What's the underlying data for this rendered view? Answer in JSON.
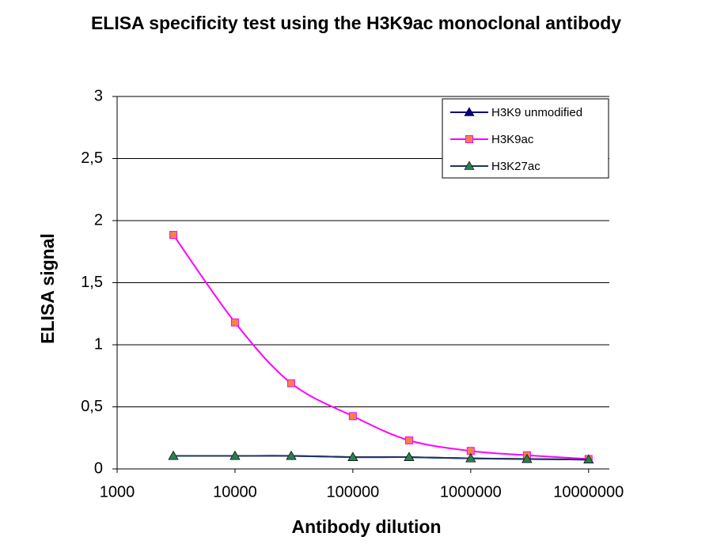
{
  "chart_data": {
    "type": "line",
    "title": "ELISA specificity test using the H3K9ac monoclonal antibody",
    "x_label": "Antibody dilution",
    "y_label": "ELISA signal",
    "x": [
      3000,
      10000,
      30000,
      100000,
      300000,
      1000000,
      3000000,
      10000000
    ],
    "xscale": "log",
    "xlim": [
      1000,
      15000000
    ],
    "xticks": [
      1000,
      10000,
      100000,
      1000000,
      10000000
    ],
    "ylim": [
      0,
      3
    ],
    "yticks": [
      0,
      {
        "value": 0.5,
        "label": "0,5"
      },
      1,
      {
        "value": 1.5,
        "label": "1,5"
      },
      2,
      {
        "value": 2.5,
        "label": "2,5"
      },
      3
    ],
    "grid": true,
    "legend": "upper right",
    "series": [
      {
        "name": "H3K9 unmodified",
        "color": "#000080",
        "marker": "triangle",
        "marker_color": "#000080",
        "values": [
          0.105,
          0.105,
          0.105,
          0.095,
          0.095,
          0.085,
          0.08,
          0.075
        ]
      },
      {
        "name": "H3K9ac",
        "color": "#ff00ff",
        "marker": "square",
        "marker_color": "#f4824a",
        "values": [
          1.885,
          1.18,
          0.69,
          0.425,
          0.23,
          0.145,
          0.11,
          0.08
        ]
      },
      {
        "name": "H3K27ac",
        "color": "#1f3560",
        "marker": "triangle",
        "marker_color": "#2e7d4f",
        "values": [
          0.105,
          0.105,
          0.105,
          0.095,
          0.095,
          0.085,
          0.08,
          0.075
        ]
      }
    ]
  }
}
